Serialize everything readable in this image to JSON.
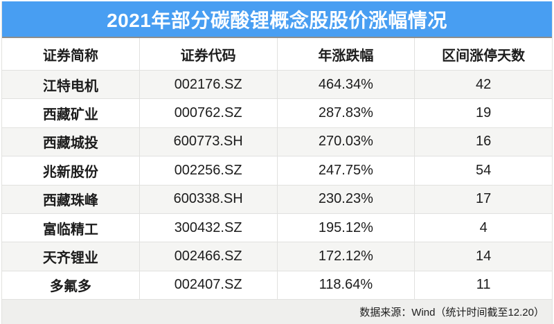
{
  "title": "2021年部分碳酸锂概念股股价涨幅情况",
  "footer": {
    "source_note": "数据来源：Wind（统计时间截至12.20）"
  },
  "colors": {
    "title_bg": "#489EF2",
    "title_text": "#FFFFFF",
    "title_underline": "#8D8D8B",
    "row_bg": "#FFFFFF",
    "row_alt_bg": "#F5F5F3",
    "divider": "#E1E1DF",
    "footer_bg": "#EFEFED",
    "text": "#1C1C1C"
  },
  "chart_data": {
    "type": "table",
    "title": "2021年部分碳酸锂概念股股价涨幅情况",
    "columns": [
      "证券简称",
      "证券代码",
      "年涨跌幅",
      "区间涨停天数"
    ],
    "rows": [
      [
        "江特电机",
        "002176.SZ",
        "464.34%",
        "42"
      ],
      [
        "西藏矿业",
        "000762.SZ",
        "287.83%",
        "19"
      ],
      [
        "西藏城投",
        "600773.SH",
        "270.03%",
        "16"
      ],
      [
        "兆新股份",
        "002256.SZ",
        "247.75%",
        "54"
      ],
      [
        "西藏珠峰",
        "600338.SH",
        "230.23%",
        "17"
      ],
      [
        "富临精工",
        "300432.SZ",
        "195.12%",
        "4"
      ],
      [
        "天齐锂业",
        "002466.SZ",
        "172.12%",
        "14"
      ],
      [
        "多氟多",
        "002407.SZ",
        "118.64%",
        "11"
      ]
    ],
    "source_note": "数据来源：Wind（统计时间截至12.20）"
  }
}
